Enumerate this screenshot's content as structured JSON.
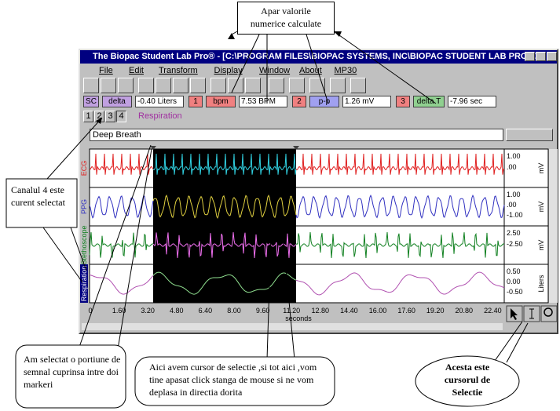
{
  "callouts": {
    "values_note": "Apar valorile numerice calculate",
    "channel_note": "Canalul 4 este curent selectat",
    "selection_note": "Am selectat o portiune de semnal cuprinsa intre doi markeri",
    "cursor_note": "Aici avem cursor de selectie ,si tot aici ,vom tine apasat click stanga de mouse si ne vom deplasa in directia dorita",
    "selection_tool_note": "Acesta este cursorul de Selectie"
  },
  "window": {
    "title": "The Biopac Student Lab Pro® - [C:\\PROGRAM FILES\\BIOPAC SYSTEMS, INC\\BIOPAC STUDENT LAB PRO V....",
    "menu": [
      "File",
      "Edit",
      "Transform",
      "Display",
      "Window",
      "About",
      "MP30"
    ],
    "measurements": [
      {
        "channel": "SC",
        "type": "delta",
        "value": "-0.40 Liters"
      },
      {
        "channel": "1",
        "type": "bpm",
        "value": "7.53 BPM"
      },
      {
        "channel": "2",
        "type": "p-p",
        "value": "1.26 mV"
      },
      {
        "channel": "3",
        "type": "delta T",
        "value": "-7.96 sec"
      }
    ],
    "channel_buttons": [
      "1",
      "2",
      "3",
      "4"
    ],
    "active_channel": "Respiration",
    "journal": "Deep Breath",
    "channels": [
      {
        "label": "ECG",
        "color": "#e02020",
        "selected_color": "#30d0e0",
        "scale": [
          "1.00",
          ".00"
        ],
        "unit": "mV"
      },
      {
        "label": "PPG",
        "color": "#3030c0",
        "selected_color": "#e0d040",
        "scale": [
          "1.00",
          ".00",
          "-1.00"
        ],
        "unit": "mV"
      },
      {
        "label": "Stethoscope",
        "color": "#108020",
        "selected_color": "#f070f0",
        "scale": [
          "2.50",
          "-2.50"
        ],
        "unit": "mV"
      },
      {
        "label": "Respiration",
        "color": "#b050b0",
        "selected_color": "#90e090",
        "scale": [
          "0.50",
          "0.00",
          "-0.50"
        ],
        "unit": "Liters"
      }
    ],
    "x_ticks": [
      "0",
      "1.60",
      "3.20",
      "4.80",
      "6.40",
      "8.00",
      "9.60",
      "11.20",
      "12.80",
      "14.40",
      "16.00",
      "17.60",
      "19.20",
      "20.80",
      "22.40"
    ],
    "x_label": "seconds"
  }
}
